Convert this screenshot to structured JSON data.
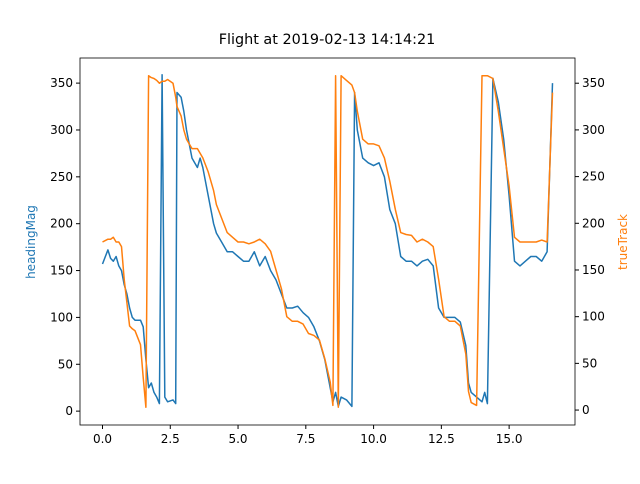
{
  "chart_data": {
    "type": "line",
    "title": "Flight at 2019-02-13 14:14:21",
    "y_label": "headingMag",
    "y2_label": "trueTrack",
    "x": [
      0,
      0.2,
      0.3,
      0.4,
      0.5,
      0.6,
      0.7,
      0.8,
      0.9,
      1.0,
      1.1,
      1.2,
      1.4,
      1.5,
      1.6,
      1.7,
      1.8,
      1.9,
      2.0,
      2.1,
      2.2,
      2.3,
      2.4,
      2.6,
      2.7,
      2.75,
      2.9,
      3.0,
      3.1,
      3.3,
      3.5,
      3.6,
      3.7,
      3.9,
      4.1,
      4.2,
      4.4,
      4.6,
      4.8,
      5.0,
      5.2,
      5.4,
      5.6,
      5.8,
      6.0,
      6.2,
      6.4,
      6.6,
      6.8,
      7.0,
      7.2,
      7.4,
      7.6,
      7.8,
      8.0,
      8.2,
      8.4,
      8.5,
      8.6,
      8.7,
      8.8,
      9.0,
      9.2,
      9.3,
      9.4,
      9.6,
      9.8,
      10.0,
      10.2,
      10.4,
      10.6,
      10.8,
      11.0,
      11.2,
      11.4,
      11.6,
      11.8,
      12.0,
      12.2,
      12.4,
      12.6,
      12.8,
      13.0,
      13.2,
      13.4,
      13.5,
      13.6,
      13.8,
      14.0,
      14.1,
      14.2,
      14.4,
      14.6,
      14.8,
      15.0,
      15.2,
      15.4,
      15.6,
      15.8,
      16.0,
      16.2,
      16.4,
      16.5,
      16.6
    ],
    "series": [
      {
        "name": "headingMag",
        "color": "#1f77b4",
        "axis": "y",
        "values": [
          157,
          172,
          163,
          160,
          165,
          155,
          150,
          135,
          125,
          110,
          100,
          97,
          97,
          90,
          55,
          25,
          30,
          20,
          15,
          8,
          359,
          15,
          10,
          12,
          8,
          340,
          335,
          320,
          300,
          270,
          260,
          270,
          260,
          230,
          200,
          190,
          180,
          170,
          170,
          165,
          160,
          160,
          170,
          155,
          165,
          150,
          140,
          125,
          110,
          110,
          112,
          105,
          100,
          90,
          75,
          55,
          25,
          10,
          20,
          5,
          15,
          12,
          5,
          340,
          300,
          270,
          265,
          262,
          265,
          250,
          215,
          200,
          165,
          160,
          160,
          155,
          160,
          162,
          155,
          110,
          100,
          100,
          100,
          95,
          70,
          30,
          20,
          15,
          10,
          20,
          8,
          355,
          330,
          290,
          230,
          160,
          155,
          160,
          165,
          165,
          160,
          170,
          260,
          350
        ]
      },
      {
        "name": "trueTrack",
        "color": "#ff7f0e",
        "axis": "y2",
        "values": [
          180,
          183,
          183,
          185,
          180,
          180,
          175,
          140,
          115,
          90,
          87,
          85,
          70,
          35,
          3,
          358,
          356,
          355,
          353,
          350,
          352,
          352,
          354,
          350,
          335,
          325,
          315,
          300,
          290,
          280,
          280,
          275,
          270,
          255,
          235,
          220,
          205,
          190,
          185,
          180,
          180,
          178,
          180,
          183,
          178,
          170,
          150,
          130,
          100,
          95,
          95,
          92,
          82,
          80,
          75,
          55,
          30,
          5,
          358,
          3,
          358,
          353,
          348,
          340,
          320,
          290,
          285,
          285,
          283,
          270,
          245,
          215,
          190,
          188,
          187,
          180,
          183,
          180,
          175,
          140,
          100,
          95,
          95,
          90,
          60,
          20,
          8,
          5,
          358,
          358,
          358,
          355,
          320,
          280,
          240,
          185,
          180,
          180,
          180,
          180,
          182,
          180,
          260,
          340
        ]
      }
    ],
    "xlim": [
      -0.83,
      17.43
    ],
    "xticks": [
      {
        "value": 0,
        "label": "0.0"
      },
      {
        "value": 2.5,
        "label": "2.5"
      },
      {
        "value": 5,
        "label": "5.0"
      },
      {
        "value": 7.5,
        "label": "7.5"
      },
      {
        "value": 10,
        "label": "10.0"
      },
      {
        "value": 12.5,
        "label": "12.5"
      },
      {
        "value": 15,
        "label": "15.0"
      }
    ],
    "ylim": [
      -14.8,
      376.8
    ],
    "yticks": [
      0,
      50,
      100,
      150,
      200,
      250,
      300,
      350
    ],
    "y2lim": [
      -16,
      377
    ],
    "y2ticks": [
      0,
      50,
      100,
      150,
      200,
      250,
      300,
      350
    ]
  }
}
